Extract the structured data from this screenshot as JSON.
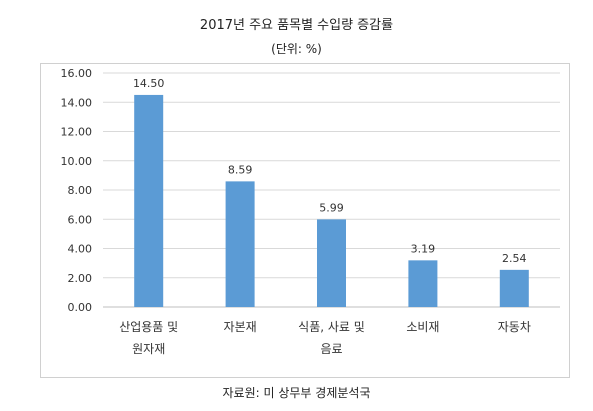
{
  "title": "2017년 주요 품목별 수입량 증감률",
  "subtitle": "(단위: %)",
  "source": "자료원: 미 상무부 경제분석국",
  "colors": {
    "bar": "#5B9BD5",
    "grid": "#d9d9d9"
  },
  "chart_data": {
    "type": "bar",
    "categories": [
      [
        "산업용품 및",
        "원자재"
      ],
      [
        "자본재"
      ],
      [
        "식품, 사료 및",
        "음료"
      ],
      [
        "소비재"
      ],
      [
        "자동차"
      ]
    ],
    "values": [
      14.5,
      8.59,
      5.99,
      3.19,
      2.54
    ],
    "data_labels": [
      "14.50",
      "8.59",
      "5.99",
      "3.19",
      "2.54"
    ],
    "yticks": [
      "0.00",
      "2.00",
      "4.00",
      "6.00",
      "8.00",
      "10.00",
      "12.00",
      "14.00",
      "16.00"
    ],
    "ylim": [
      0,
      16
    ],
    "grid": true,
    "title": "2017년 주요 품목별 수입량 증감률",
    "xlabel": "",
    "ylabel": ""
  }
}
